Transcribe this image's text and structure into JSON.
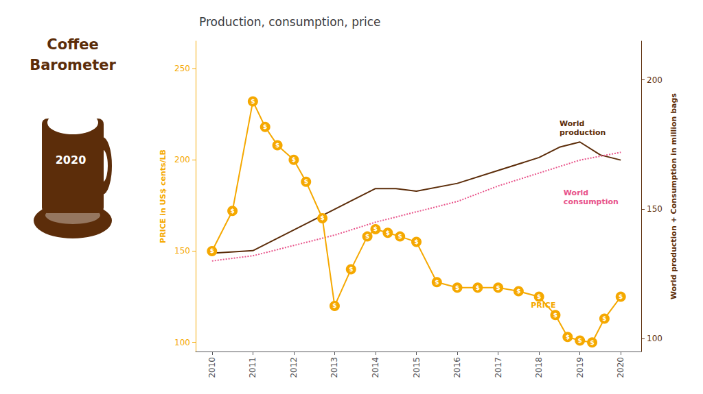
{
  "chart_data": {
    "type": "line",
    "title": "Production, consumption, price",
    "ylabel": "PRICE in US$ cents/LB",
    "y2label": "World production + Consumption in million bags",
    "xlim": [
      2009.6,
      2020.5
    ],
    "xticks": [
      2010,
      2011,
      2012,
      2013,
      2014,
      2015,
      2016,
      2017,
      2018,
      2019,
      2020
    ],
    "ylim": [
      95,
      265
    ],
    "yticks": [
      100,
      150,
      200,
      250
    ],
    "y2lim": [
      95,
      215
    ],
    "y2ticks": [
      100,
      150,
      200
    ],
    "grid": false,
    "series": [
      {
        "type": "line",
        "axis": "y",
        "color": "#F5A800",
        "marker": "$",
        "line_style": "solid",
        "x": [
          2010,
          2010.5,
          2011,
          2011.3,
          2011.6,
          2012,
          2012.3,
          2012.7,
          2013,
          2013.4,
          2013.8,
          2014,
          2014.3,
          2014.6,
          2015,
          2015.5,
          2016,
          2016.5,
          2017,
          2017.5,
          2018,
          2018.4,
          2018.7,
          2019,
          2019.3,
          2019.6,
          2020
        ],
        "values": [
          150,
          172,
          232,
          218,
          208,
          200,
          188,
          168,
          120,
          140,
          158,
          162,
          160,
          158,
          155,
          133,
          130,
          130,
          130,
          128,
          125,
          115,
          103,
          101,
          100,
          113,
          125
        ]
      },
      {
        "type": "line",
        "axis": "y2",
        "color": "#5c2d0a",
        "line_style": "solid",
        "x": [
          2010,
          2011,
          2012,
          2013,
          2014,
          2014.5,
          2015,
          2016,
          2017,
          2018,
          2018.5,
          2019,
          2019.5,
          2020
        ],
        "values": [
          133,
          134,
          142,
          150,
          158,
          158,
          157,
          160,
          165,
          170,
          174,
          176,
          171,
          169
        ]
      },
      {
        "type": "line",
        "axis": "y2",
        "color": "#e8538a",
        "line_style": "dotted",
        "x": [
          2010,
          2011,
          2012,
          2013,
          2014,
          2015,
          2016,
          2017,
          2018,
          2019,
          2020
        ],
        "values": [
          130,
          132,
          136,
          140,
          145,
          149,
          153,
          159,
          164,
          169,
          172
        ]
      }
    ],
    "annotations": [
      {
        "text": "World\nproduction",
        "x": 2018.5,
        "y": 178,
        "axis": "y2",
        "color": "#5c2d0a"
      },
      {
        "text": "World\nconsumption",
        "x": 2018.6,
        "y": 158,
        "axis": "y2",
        "color": "#e8538a"
      },
      {
        "text": "PRICE",
        "x": 2017.8,
        "y": 118,
        "axis": "y",
        "color": "#F5A800"
      },
      {
        "text": "Coffee\nBarometer",
        "color": "#5c2d0a"
      },
      {
        "text": "2020",
        "color": "#ffffff"
      }
    ]
  }
}
